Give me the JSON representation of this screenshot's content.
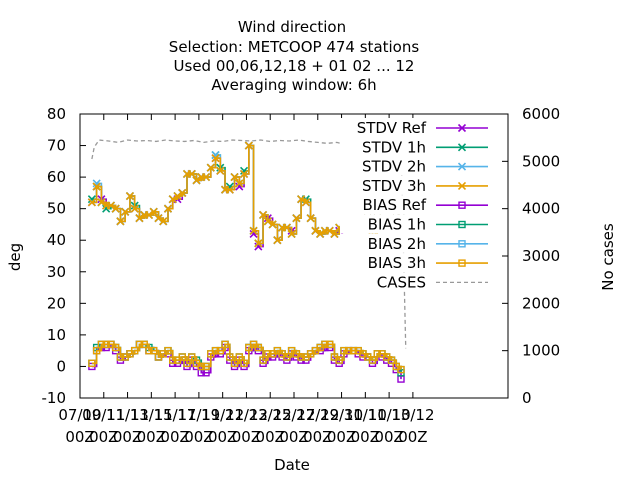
{
  "chart_data": {
    "type": "line",
    "title": "Wind direction",
    "subtitle_lines": [
      "Selection: METCOOP    474 stations",
      "Used  00,06,12,18 + 01 02 ... 12",
      "Averaging window:  6h"
    ],
    "xlabel": "Date",
    "ylabel": "deg",
    "y2label": "No cases",
    "xlim": [
      0,
      36
    ],
    "ylim": [
      -10,
      80
    ],
    "y2lim": [
      0,
      6000
    ],
    "yticks": [
      -10,
      0,
      10,
      20,
      30,
      40,
      50,
      60,
      70,
      80
    ],
    "y2ticks": [
      0,
      1000,
      2000,
      3000,
      4000,
      5000,
      6000
    ],
    "xticks": [
      {
        "x": 0,
        "l1": "07/10",
        "l2": "00Z"
      },
      {
        "x": 2,
        "l1": "09/11",
        "l2": "00Z"
      },
      {
        "x": 4,
        "l1": "11/11",
        "l2": "00Z"
      },
      {
        "x": 6,
        "l1": "13/11",
        "l2": "00Z"
      },
      {
        "x": 8,
        "l1": "15/11",
        "l2": "00Z"
      },
      {
        "x": 10,
        "l1": "17/11",
        "l2": "00Z"
      },
      {
        "x": 12,
        "l1": "19/12",
        "l2": "00Z"
      },
      {
        "x": 14,
        "l1": "21/12",
        "l2": "00Z"
      },
      {
        "x": 16,
        "l1": "23/12",
        "l2": "00Z"
      },
      {
        "x": 18,
        "l1": "25/12",
        "l2": "00Z"
      },
      {
        "x": 20,
        "l1": "27/12",
        "l2": "00Z"
      },
      {
        "x": 22,
        "l1": "29/10",
        "l2": "00Z"
      },
      {
        "x": 24,
        "l1": "31/10",
        "l2": "00Z"
      },
      {
        "x": 26,
        "l1": "11/10",
        "l2": "00Z"
      },
      {
        "x": 28,
        "l1": "13/12",
        "l2": "00Z"
      }
    ],
    "x": [
      1.0,
      1.4,
      1.8,
      2.2,
      2.6,
      3.0,
      3.4,
      3.8,
      4.2,
      4.6,
      5.0,
      5.4,
      5.8,
      6.2,
      6.6,
      7.0,
      7.4,
      7.8,
      8.2,
      8.6,
      9.0,
      9.4,
      9.8,
      10.2,
      10.6,
      11.0,
      11.4,
      11.8,
      12.2,
      12.6,
      13.0,
      13.4,
      13.8,
      14.2,
      14.6,
      15.0,
      15.4,
      15.8,
      16.2,
      16.6,
      17.0,
      17.4,
      17.8,
      18.2,
      18.6,
      19.0,
      19.4,
      19.8,
      20.2,
      20.6,
      21.0,
      21.4,
      21.8,
      22.2,
      22.6,
      23.0,
      23.4,
      23.8,
      24.2,
      24.6,
      25.0,
      25.4,
      25.8,
      26.2,
      26.6,
      27.0
    ],
    "legend_position": "top-right",
    "series": [
      {
        "name": "STDV Ref",
        "color": "#9400d3",
        "marker": "x",
        "axis": "y",
        "values": [
          52,
          57,
          53,
          51,
          51,
          50,
          46,
          49,
          54,
          50,
          47,
          48,
          48,
          49,
          47,
          46,
          50,
          53,
          53,
          55,
          61,
          61,
          59,
          60,
          60,
          63,
          66,
          62,
          56,
          56,
          60,
          57,
          61,
          70,
          42,
          38,
          48,
          47,
          45,
          40,
          44,
          44,
          43,
          47,
          53,
          52,
          47,
          43,
          42,
          43,
          43,
          42,
          43,
          44,
          44,
          45,
          45,
          46,
          47,
          40,
          47,
          46,
          45,
          45,
          47,
          47
        ]
      },
      {
        "name": "STDV 1h",
        "color": "#009e73",
        "marker": "x",
        "axis": "y",
        "values": [
          53,
          57,
          52,
          50,
          51,
          50,
          46,
          49,
          54,
          51,
          47,
          48,
          48,
          49,
          47,
          46,
          50,
          53,
          54,
          55,
          61,
          61,
          59,
          60,
          60,
          63,
          67,
          63,
          56,
          57,
          60,
          58,
          62,
          70,
          43,
          39,
          48,
          46,
          45,
          40,
          44,
          44,
          42,
          47,
          53,
          53,
          47,
          43,
          42,
          43,
          43,
          42,
          44,
          44,
          44,
          45,
          45,
          46,
          47,
          41,
          47,
          46,
          45,
          45,
          47,
          47
        ]
      },
      {
        "name": "STDV 2h",
        "color": "#56b4e9",
        "marker": "x",
        "axis": "y",
        "values": [
          52,
          58,
          52,
          51,
          51,
          50,
          46,
          49,
          54,
          50,
          47,
          48,
          48,
          49,
          47,
          46,
          50,
          53,
          54,
          55,
          61,
          61,
          59,
          60,
          60,
          63,
          67,
          62,
          56,
          56,
          60,
          58,
          61,
          70,
          43,
          39,
          48,
          46,
          45,
          40,
          44,
          44,
          42,
          47,
          53,
          52,
          47,
          43,
          42,
          43,
          43,
          42,
          44,
          44,
          44,
          45,
          45,
          46,
          47,
          41,
          47,
          46,
          45,
          45,
          47,
          47
        ]
      },
      {
        "name": "STDV 3h",
        "color": "#e69f00",
        "marker": "x",
        "axis": "y",
        "values": [
          52,
          57,
          52,
          51,
          51,
          50,
          46,
          49,
          54,
          50,
          47,
          48,
          48,
          49,
          47,
          46,
          50,
          53,
          54,
          55,
          61,
          61,
          59,
          60,
          60,
          63,
          66,
          62,
          56,
          56,
          60,
          58,
          61,
          70,
          43,
          39,
          48,
          46,
          45,
          40,
          44,
          44,
          42,
          47,
          53,
          52,
          47,
          43,
          42,
          43,
          43,
          42,
          44,
          44,
          44,
          45,
          45,
          46,
          47,
          41,
          47,
          46,
          45,
          45,
          47,
          47
        ]
      },
      {
        "name": "BIAS Ref",
        "color": "#9400d3",
        "marker": "square",
        "axis": "y",
        "values": [
          0,
          5,
          6,
          6,
          7,
          5,
          2,
          3,
          4,
          5,
          7,
          7,
          5,
          5,
          3,
          4,
          4,
          1,
          1,
          2,
          0,
          2,
          0,
          -2,
          -2,
          3,
          4,
          4,
          6,
          2,
          0,
          2,
          0,
          5,
          6,
          5,
          1,
          3,
          3,
          4,
          3,
          2,
          4,
          3,
          2,
          2,
          4,
          5,
          5,
          6,
          6,
          2,
          1,
          4,
          5,
          5,
          4,
          3,
          3,
          1,
          4,
          3,
          2,
          1,
          -1,
          -4
        ]
      },
      {
        "name": "BIAS 1h",
        "color": "#009e73",
        "marker": "square",
        "axis": "y",
        "values": [
          1,
          6,
          7,
          7,
          7,
          6,
          3,
          3,
          4,
          5,
          7,
          7,
          6,
          5,
          3,
          4,
          5,
          2,
          2,
          3,
          1,
          3,
          2,
          0,
          0,
          4,
          5,
          5,
          7,
          3,
          1,
          3,
          1,
          6,
          7,
          6,
          2,
          4,
          4,
          5,
          4,
          3,
          5,
          4,
          3,
          3,
          4,
          5,
          6,
          7,
          7,
          3,
          2,
          5,
          5,
          5,
          5,
          4,
          3,
          2,
          4,
          4,
          3,
          2,
          0,
          -2
        ]
      },
      {
        "name": "BIAS 2h",
        "color": "#56b4e9",
        "marker": "square",
        "axis": "y",
        "values": [
          1,
          5,
          7,
          7,
          7,
          6,
          3,
          3,
          4,
          5,
          7,
          7,
          5,
          5,
          3,
          4,
          5,
          2,
          2,
          3,
          1,
          3,
          1,
          0,
          0,
          4,
          5,
          5,
          7,
          3,
          1,
          3,
          1,
          6,
          7,
          6,
          2,
          4,
          4,
          5,
          4,
          3,
          5,
          4,
          3,
          3,
          4,
          5,
          6,
          7,
          7,
          3,
          2,
          5,
          5,
          5,
          5,
          4,
          3,
          2,
          4,
          4,
          3,
          2,
          0,
          -1
        ]
      },
      {
        "name": "BIAS 3h",
        "color": "#e69f00",
        "marker": "square",
        "axis": "y",
        "values": [
          1,
          5,
          7,
          7,
          7,
          6,
          3,
          3,
          4,
          5,
          7,
          7,
          5,
          5,
          3,
          4,
          5,
          2,
          2,
          3,
          1,
          3,
          1,
          0,
          0,
          4,
          5,
          5,
          7,
          3,
          1,
          3,
          1,
          6,
          7,
          6,
          2,
          4,
          4,
          5,
          4,
          3,
          5,
          4,
          3,
          3,
          4,
          5,
          6,
          7,
          7,
          3,
          2,
          5,
          5,
          5,
          5,
          4,
          3,
          2,
          4,
          4,
          3,
          2,
          0,
          -1
        ]
      },
      {
        "name": "CASES",
        "color": "#999999",
        "dashed": true,
        "axis": "y2",
        "x": [
          1.0,
          1.2,
          1.6,
          2.4,
          3.2,
          4.0,
          4.8,
          5.6,
          6.4,
          7.2,
          8.0,
          8.8,
          9.6,
          10.4,
          11.2,
          12.0,
          12.8,
          13.6,
          14.4,
          15.2,
          16.0,
          16.8,
          17.6,
          18.4,
          19.2,
          20.0,
          20.8,
          21.6,
          22.4,
          23.2,
          24.0,
          24.8,
          25.6,
          26.2,
          26.6,
          27.0,
          27.4
        ],
        "values": [
          5050,
          5300,
          5450,
          5430,
          5400,
          5450,
          5430,
          5440,
          5420,
          5450,
          5430,
          5420,
          5440,
          5400,
          5430,
          5420,
          5450,
          5440,
          5430,
          5450,
          5420,
          5440,
          5430,
          5450,
          5420,
          5400,
          5380,
          5400,
          5350,
          5420,
          5410,
          5400,
          5350,
          5420,
          5350,
          5380,
          1050
        ]
      }
    ]
  }
}
